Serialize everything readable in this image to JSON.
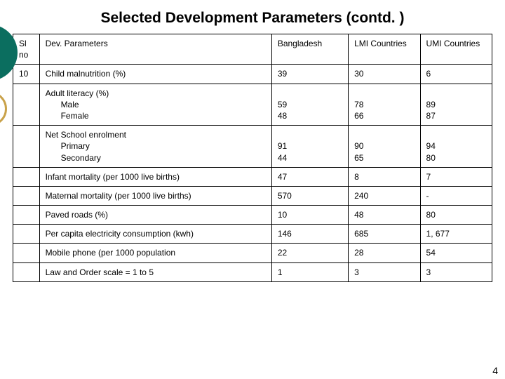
{
  "title": "Selected Development Parameters (contd. )",
  "page_number": "4",
  "columns": {
    "c0": "Sl no",
    "c1": "Dev. Parameters",
    "c2": "Bangladesh",
    "c3": "LMI Countries",
    "c4": "UMI Countries"
  },
  "rows": [
    {
      "sl": "10",
      "param_lines": [
        "Child malnutrition (%)"
      ],
      "indent_from": 99,
      "v2": "39",
      "v3": "30",
      "v4": "6"
    },
    {
      "sl": "",
      "param_lines": [
        "Adult literacy (%)",
        "Male",
        "Female"
      ],
      "indent_from": 1,
      "v2": "\n59\n48",
      "v3": "\n78\n66",
      "v4": "\n89\n87"
    },
    {
      "sl": "",
      "param_lines": [
        "Net School enrolment",
        "Primary",
        "Secondary"
      ],
      "indent_from": 1,
      "v2": "\n91\n44",
      "v3": "\n90\n65",
      "v4": "\n94\n80"
    },
    {
      "sl": "",
      "param_lines": [
        "Infant mortality (per 1000 live births)"
      ],
      "indent_from": 99,
      "v2": "47",
      "v3": "8",
      "v4": "7"
    },
    {
      "sl": "",
      "param_lines": [
        "Maternal mortality (per 1000 live births)"
      ],
      "indent_from": 99,
      "v2": "570",
      "v3": "240",
      "v4": "-"
    },
    {
      "sl": "",
      "param_lines": [
        "Paved roads (%)"
      ],
      "indent_from": 99,
      "v2": "10",
      "v3": "48",
      "v4": "80"
    },
    {
      "sl": "",
      "param_lines": [
        "Per capita electricity consumption (kwh)"
      ],
      "indent_from": 99,
      "v2": "146",
      "v3": "685",
      "v4": "1, 677"
    },
    {
      "sl": "",
      "param_lines": [
        "Mobile phone (per 1000 population"
      ],
      "indent_from": 99,
      "v2": "22",
      "v3": "28",
      "v4": "54"
    },
    {
      "sl": "",
      "param_lines": [
        "Law and Order scale = 1 to 5"
      ],
      "indent_from": 99,
      "v2": "1",
      "v3": "3",
      "v4": "3"
    }
  ]
}
